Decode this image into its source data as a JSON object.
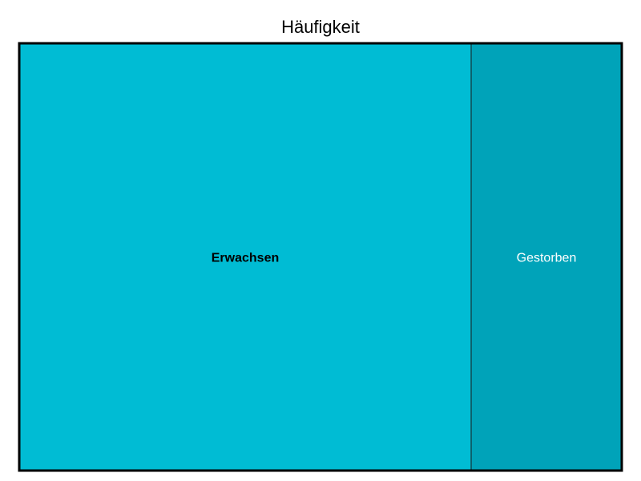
{
  "chart_data": {
    "type": "mosaic",
    "title": "Häufigkeit",
    "categories": [
      "Erwachsen",
      "Gestorben"
    ],
    "values": [
      3,
      1
    ],
    "colors": [
      "#00BCD4",
      "#00A3B9"
    ],
    "label_colors": [
      "#000000",
      "#ffffff"
    ],
    "label_weights": [
      "bold",
      "normal"
    ],
    "border_color": "#000000"
  }
}
